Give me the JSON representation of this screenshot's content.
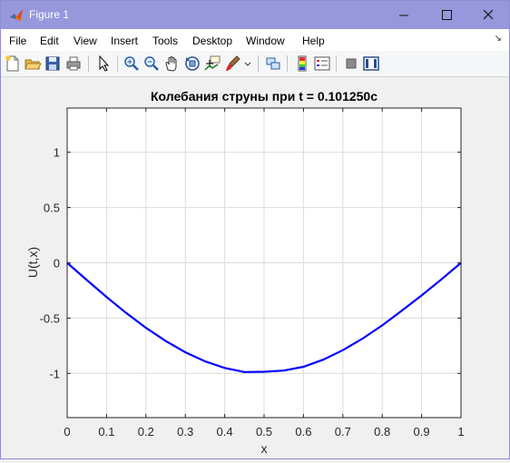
{
  "window": {
    "title": "Figure 1",
    "minimize_glyph": "—",
    "maximize_glyph": "☐",
    "close_glyph": "✕"
  },
  "menu": {
    "items": [
      {
        "label": "File",
        "mnemonic": "F"
      },
      {
        "label": "Edit",
        "mnemonic": "E"
      },
      {
        "label": "View",
        "mnemonic": "V"
      },
      {
        "label": "Insert",
        "mnemonic": "I"
      },
      {
        "label": "Tools",
        "mnemonic": "T"
      },
      {
        "label": "Desktop",
        "mnemonic": "D"
      },
      {
        "label": "Window",
        "mnemonic": "W"
      },
      {
        "label": "Help",
        "mnemonic": "H"
      }
    ],
    "dock_glyph": "↘"
  },
  "toolbar": {
    "buttons": [
      "new-figure-icon",
      "open-file-icon",
      "save-icon",
      "print-icon",
      "edit-plot-arrow-icon",
      "zoom-in-icon",
      "zoom-out-icon",
      "pan-hand-icon",
      "rotate-3d-icon",
      "data-cursor-icon",
      "brush-icon",
      "link-plot-icon",
      "colorbar-icon",
      "legend-icon",
      "hide-plot-tools-icon",
      "show-plot-tools-icon"
    ]
  },
  "colors": {
    "line": "#0000ff",
    "grid": "#dcdcdc",
    "axes_bg": "#ffffff",
    "titlebar": "#9797dc"
  },
  "chart_data": {
    "type": "line",
    "title": "Колебания струны при t = 0.101250c",
    "xlabel": "x",
    "ylabel": "U(t,x)",
    "xlim": [
      0,
      1
    ],
    "ylim": [
      -1.4,
      1.4
    ],
    "xticks": [
      0,
      0.1,
      0.2,
      0.3,
      0.4,
      0.5,
      0.6,
      0.7,
      0.8,
      0.9,
      1
    ],
    "xtick_labels": [
      "0",
      "0.1",
      "0.2",
      "0.3",
      "0.4",
      "0.5",
      "0.6",
      "0.7",
      "0.8",
      "0.9",
      "1"
    ],
    "yticks": [
      -1,
      -0.5,
      0,
      0.5,
      1
    ],
    "ytick_labels": [
      "-1",
      "-0.5",
      "0",
      "0.5",
      "1"
    ],
    "grid": true,
    "series": [
      {
        "name": "U",
        "x": [
          0,
          0.05,
          0.1,
          0.15,
          0.2,
          0.25,
          0.3,
          0.35,
          0.4,
          0.45,
          0.5,
          0.55,
          0.6,
          0.65,
          0.7,
          0.75,
          0.8,
          0.85,
          0.9,
          0.95,
          1
        ],
        "y": [
          0,
          -0.156,
          -0.309,
          -0.454,
          -0.588,
          -0.707,
          -0.809,
          -0.891,
          -0.951,
          -0.988,
          -0.985,
          -0.975,
          -0.94,
          -0.876,
          -0.79,
          -0.686,
          -0.566,
          -0.432,
          -0.295,
          -0.15,
          0
        ]
      }
    ]
  }
}
